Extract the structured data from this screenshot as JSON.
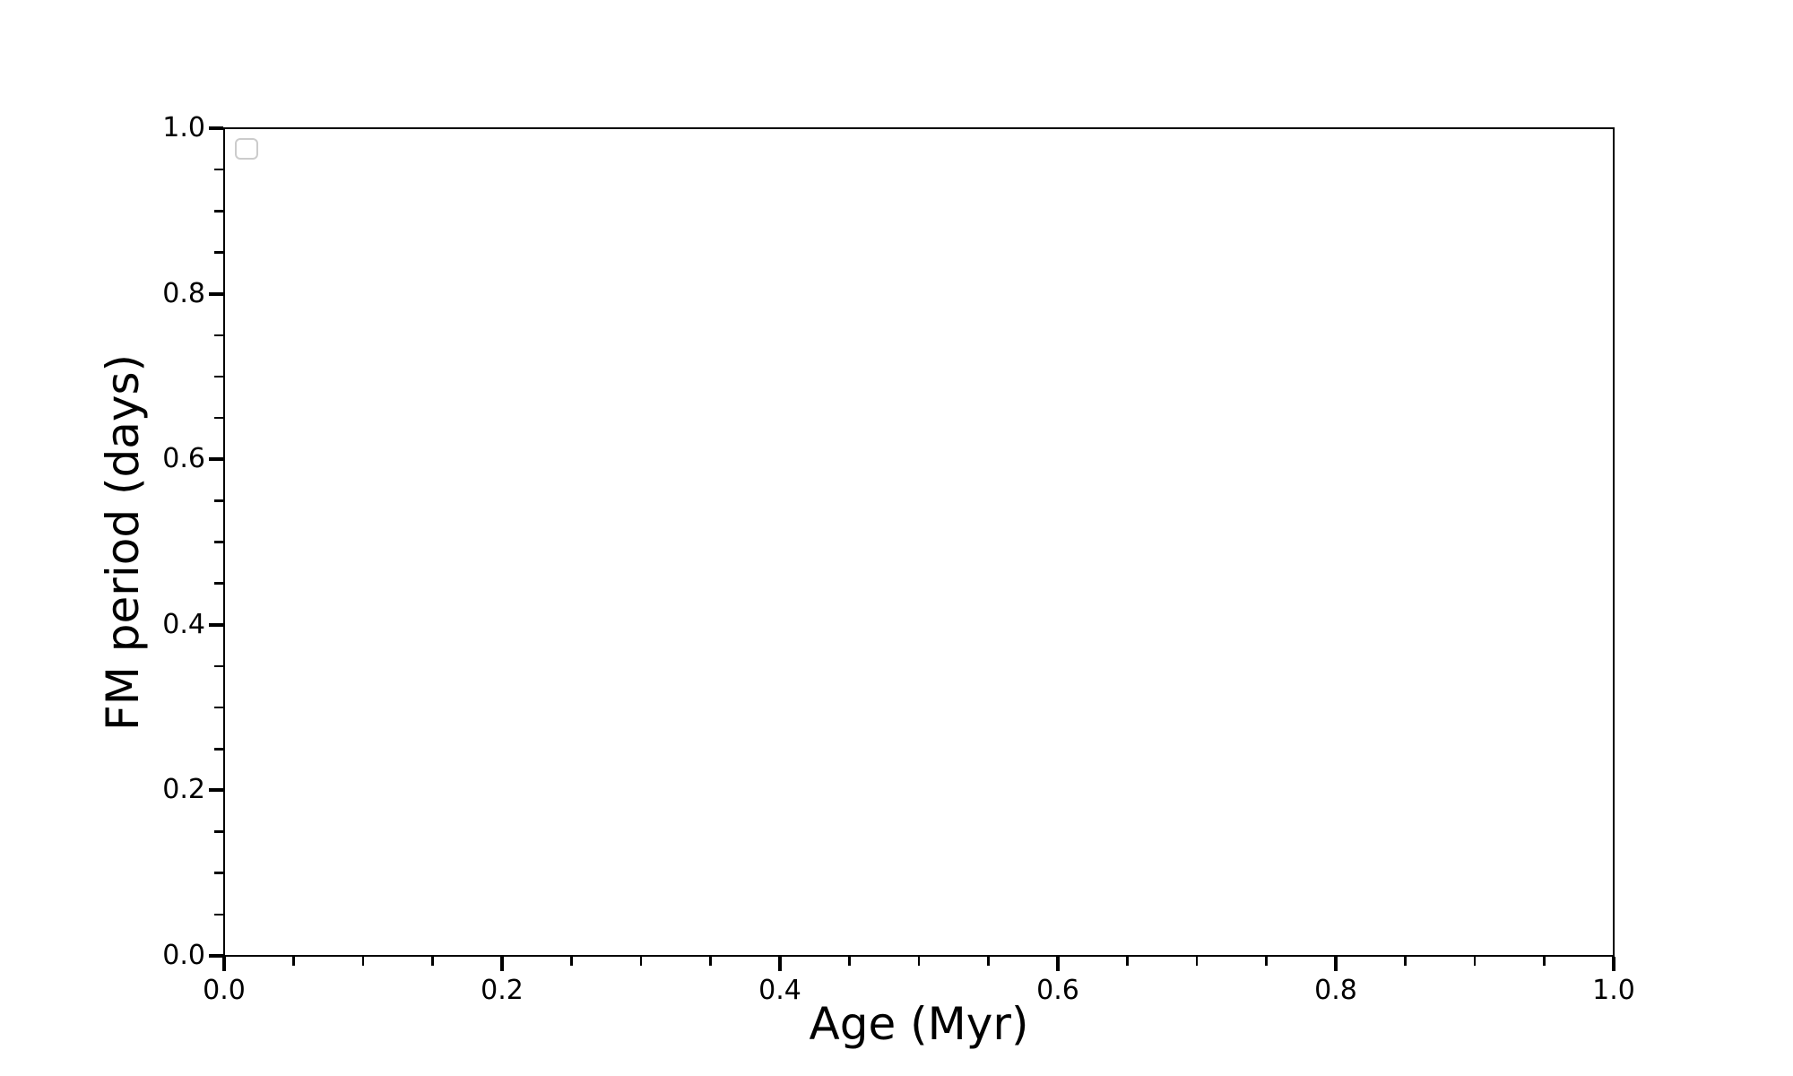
{
  "chart_data": {
    "type": "scatter",
    "title": "",
    "xlabel": "Age (Myr)",
    "ylabel": "FM period (days)",
    "xlim": [
      0.0,
      1.0
    ],
    "ylim": [
      0.0,
      1.0
    ],
    "x_ticks": {
      "values": [
        0.0,
        0.2,
        0.4,
        0.6,
        0.8,
        1.0
      ],
      "labels": [
        "0.0",
        "0.2",
        "0.4",
        "0.6",
        "0.8",
        "1.0"
      ],
      "minor_step": 0.05
    },
    "y_ticks": {
      "values": [
        0.0,
        0.2,
        0.4,
        0.6,
        0.8,
        1.0
      ],
      "labels": [
        "0.0",
        "0.2",
        "0.4",
        "0.6",
        "0.8",
        "1.0"
      ],
      "minor_step": 0.05
    },
    "series": [],
    "legend": {
      "visible": true,
      "entries": [],
      "position": "upper left"
    },
    "grid": false,
    "colors": {
      "axis": "#000000",
      "background": "#ffffff",
      "legend_border": "#cccccc"
    }
  }
}
